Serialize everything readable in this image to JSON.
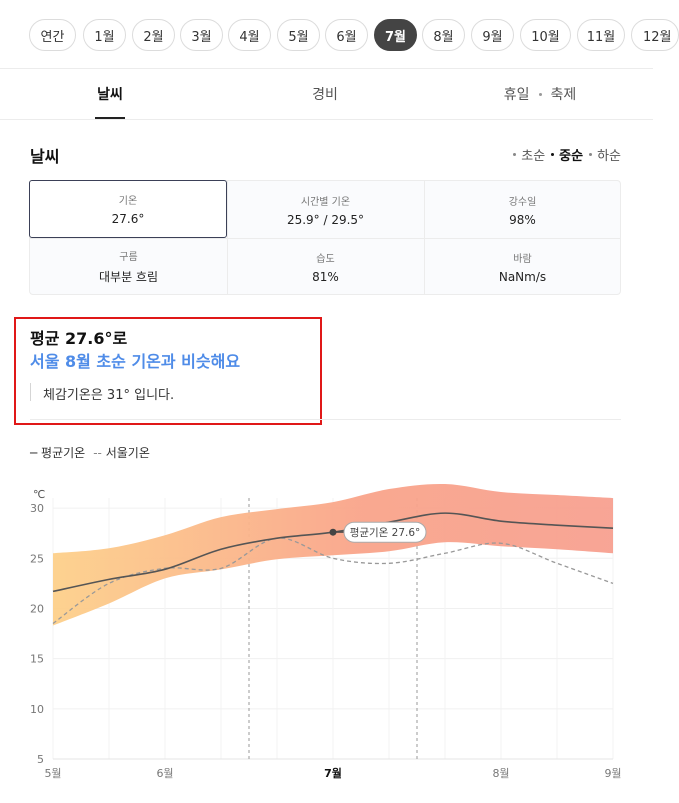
{
  "months": [
    "연간",
    "1월",
    "2월",
    "3월",
    "4월",
    "5월",
    "6월",
    "7월",
    "8월",
    "9월",
    "10월",
    "11월",
    "12월"
  ],
  "active_month": "7월",
  "tabs": {
    "weather": "날씨",
    "cost": "경비",
    "holiday": "휴일",
    "festival": "축제"
  },
  "section": {
    "title": "날씨",
    "periods": [
      "초순",
      "중순",
      "하순"
    ],
    "active_period": "중순"
  },
  "info": {
    "temp": {
      "label": "기온",
      "value": "27.6°"
    },
    "hourly": {
      "label": "시간별 기온",
      "value": "25.9° / 29.5°"
    },
    "rain": {
      "label": "강수일",
      "value": "98%"
    },
    "cloud": {
      "label": "구름",
      "value": "대부분 흐림"
    },
    "humidity": {
      "label": "습도",
      "value": "81%"
    },
    "wind": {
      "label": "바람",
      "value": "NaNm/s"
    }
  },
  "summary": {
    "line1": "평균 27.6°로",
    "line2": "서울 8월 초순 기온과 비슷해요",
    "feel": "체감기온은 31° 입니다."
  },
  "legend": {
    "avg": "평균기온",
    "seoul": "서울기온"
  },
  "colors": {
    "accent_blue": "#4f8ce8",
    "highlight_red": "#e01818",
    "band_warm": "#f7a090",
    "band_cool": "#fdd08a",
    "line_avg": "#555555",
    "line_seoul": "#999999"
  },
  "chart_data": {
    "type": "line",
    "unit": "℃",
    "y_ticks": [
      5,
      10,
      15,
      20,
      25,
      30
    ],
    "ylim": [
      5,
      33
    ],
    "x_ticks": [
      "5월",
      "6월",
      "7월",
      "8월",
      "9월"
    ],
    "x_ticks_at": [
      0,
      1,
      2.5,
      4,
      5
    ],
    "current_tick": "7월",
    "marker_label": "평균기온 27.6°",
    "marker": {
      "x": 2.5,
      "y": 27.6
    },
    "selected_range": [
      1.75,
      3.25
    ],
    "series": [
      {
        "name": "평균기온",
        "x": [
          0,
          0.5,
          1,
          1.5,
          2,
          2.5,
          3,
          3.5,
          4,
          4.5,
          5
        ],
        "y": [
          21.7,
          22.9,
          23.9,
          25.9,
          27.0,
          27.6,
          28.6,
          29.5,
          28.7,
          28.3,
          28.0
        ]
      },
      {
        "name": "서울기온",
        "x": [
          0,
          0.5,
          1,
          1.5,
          2,
          2.5,
          3,
          3.5,
          4,
          4.5,
          5
        ],
        "y": [
          18.5,
          22.5,
          24.0,
          24.0,
          27.0,
          25.0,
          24.5,
          25.5,
          26.5,
          24.5,
          22.5
        ]
      }
    ],
    "band": {
      "x": [
        0,
        0.5,
        1,
        1.5,
        2,
        2.5,
        3,
        3.5,
        4,
        4.5,
        5
      ],
      "low": [
        18.3,
        20.5,
        23.0,
        23.9,
        24.9,
        25.3,
        25.7,
        26.6,
        26.2,
        25.9,
        25.5
      ],
      "high": [
        25.5,
        26.0,
        27.3,
        29.1,
        29.9,
        30.6,
        31.9,
        32.4,
        31.6,
        31.3,
        31.0
      ]
    }
  }
}
